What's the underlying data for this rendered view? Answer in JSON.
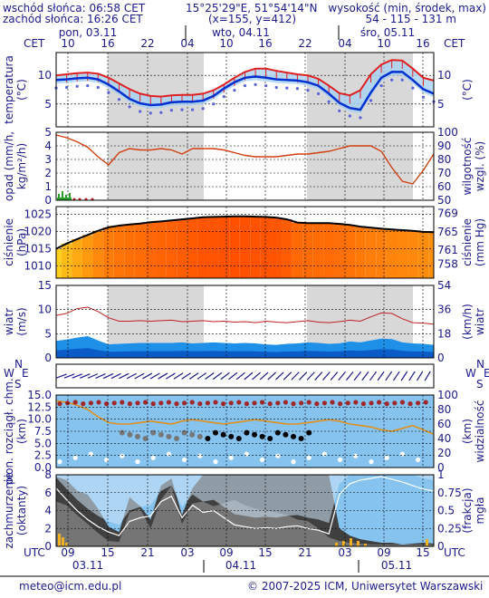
{
  "header": {
    "sunrise": "wschód słońca: 06:58 CET",
    "sunset": "zachód słońca: 16:26 CET",
    "coords": "15°25'29\"E, 51°54'14\"N",
    "grid": "(x=155,  y=412)",
    "alt_label": "wysokość (min, środek, max)",
    "alt_values": "54 - 115 - 131 m"
  },
  "top_axis": {
    "tz": "CET",
    "days": [
      "pon, 03.11",
      "wto, 04.11",
      "śro, 05.11"
    ],
    "hours": [
      "10",
      "16",
      "22",
      "04",
      "10",
      "16",
      "22",
      "04",
      "10",
      "16"
    ]
  },
  "bottom_axis": {
    "tz": "UTC",
    "hours": [
      "09",
      "15",
      "21",
      "03",
      "09",
      "15",
      "21",
      "03",
      "09",
      "15"
    ],
    "dates": [
      "03.11",
      "04.11",
      "05.11"
    ]
  },
  "footer": {
    "email": "meteo@icm.edu.pl",
    "copyright": "© 2007-2025 ICM, Uniwersytet Warszawski"
  },
  "colors": {
    "axis_text": "#1a1a8c",
    "night": "#d8d8d8",
    "temp_max": "#e02020",
    "temp_mid": "#0030d0",
    "humidity": "#d04010",
    "pressure": "#000000",
    "wind_fill": "#1e90e8",
    "cloud_bg": "#86c3ef"
  },
  "chart_data": [
    {
      "panel": "temperature",
      "type": "line",
      "ylabel_left": "temperatura (°C)",
      "ylabel_right": "(°C)",
      "ylim": [
        1,
        14
      ],
      "yticks": [
        5,
        10
      ],
      "series": [
        {
          "values": [
            10.0,
            10.2,
            10.4,
            10.5,
            10.3,
            9.6,
            8.6,
            7.6,
            6.8,
            6.4,
            6.3,
            6.5,
            6.6,
            6.6,
            6.8,
            7.4,
            8.4,
            9.6,
            10.6,
            11.2,
            11.2,
            10.8,
            10.5,
            10.2,
            10.0,
            9.4,
            8.2,
            6.9,
            6.5,
            7.4,
            10.2,
            11.9,
            12.7,
            12.6,
            11.2,
            9.6,
            9.1
          ]
        },
        {
          "values": [
            9.2,
            9.3,
            9.5,
            9.6,
            9.3,
            8.4,
            7.2,
            5.9,
            5.1,
            4.8,
            4.9,
            5.3,
            5.4,
            5.4,
            5.6,
            6.4,
            7.7,
            8.8,
            9.6,
            9.8,
            9.6,
            9.3,
            9.2,
            9.1,
            8.8,
            8.2,
            6.8,
            5.2,
            4.3,
            4.0,
            7.0,
            9.6,
            10.6,
            10.6,
            9.2,
            7.6,
            6.8
          ]
        }
      ]
    },
    {
      "panel": "humidity",
      "type": "line",
      "ylabel_left": "opad (mm/h, kg/m²/h)",
      "ylabel_right": "wilgotność wzgl. (%)",
      "yticks_left": [
        0,
        1,
        2,
        3,
        4,
        5
      ],
      "yticks_right": [
        50,
        60,
        70,
        80,
        90,
        100
      ],
      "series": [
        {
          "values": [
            98,
            96,
            93,
            89,
            82,
            76,
            85,
            88,
            87,
            87,
            88,
            87,
            84,
            88,
            88,
            88,
            87,
            85,
            83,
            82,
            82,
            82,
            83,
            84,
            84,
            85,
            86,
            88,
            90,
            90,
            90,
            86,
            74,
            64,
            62,
            72,
            84,
            86
          ]
        }
      ]
    },
    {
      "panel": "pressure",
      "type": "line",
      "ylabel_left": "ciśnienie (hPa)",
      "ylabel_right": "ciśnienie (mm Hg)",
      "yticks_left": [
        1010,
        1015,
        1020,
        1025
      ],
      "yticks_right": [
        758,
        761,
        765,
        769
      ],
      "series": [
        {
          "values": [
            1015,
            1016.5,
            1017.8,
            1019,
            1020.2,
            1021.2,
            1021.7,
            1022,
            1022.3,
            1022.7,
            1022.9,
            1023.2,
            1023.5,
            1023.8,
            1024.1,
            1024.2,
            1024.3,
            1024.4,
            1024.4,
            1024.3,
            1024.2,
            1024,
            1023.5,
            1022.6,
            1022.4,
            1022.4,
            1022.4,
            1022.2,
            1021.9,
            1021.4,
            1021.1,
            1020.8,
            1020.6,
            1020.4,
            1020.2,
            1019.9,
            1019.8
          ]
        }
      ]
    },
    {
      "panel": "wind",
      "type": "area",
      "ylabel_left": "wiatr (m/s)",
      "ylabel_right": "(km/h) wiatr",
      "yticks_left": [
        0,
        5,
        10,
        15
      ],
      "yticks_right": [
        0,
        18,
        36,
        54
      ],
      "series": [
        {
          "values": [
            3.5,
            3.8,
            4.2,
            4.5,
            3.6,
            2.8,
            2.9,
            3.0,
            3.1,
            3.1,
            3.1,
            3.1,
            3.2,
            3.0,
            3.1,
            3.2,
            3.1,
            3.0,
            3.1,
            3.0,
            2.8,
            2.7,
            2.9,
            3.0,
            3.2,
            3.1,
            2.9,
            3.0,
            3.4,
            3.2,
            3.6,
            4.0,
            3.9,
            3.2,
            3.0,
            2.9,
            2.7
          ]
        }
      ]
    },
    {
      "panel": "visibility",
      "type": "scatter",
      "ylabel_left": "pion. rozciągł. chm. (km)",
      "ylabel_right": "(km) widzialność",
      "yticks_left": [
        "0.0",
        "2.5",
        "5.0",
        "7.5",
        "10.0",
        "12.5",
        "15.0"
      ],
      "yticks_right": [
        0,
        20,
        40,
        60,
        80,
        100
      ]
    },
    {
      "panel": "clouds",
      "type": "area",
      "ylabel_left": "zachmurzenie (oktanty)",
      "ylabel_right": "(frakcja) mgła",
      "yticks_left": [
        0,
        2,
        4,
        6,
        8
      ],
      "yticks_right": [
        "0",
        "0.25",
        "0.5",
        "0.75",
        "1"
      ]
    }
  ]
}
